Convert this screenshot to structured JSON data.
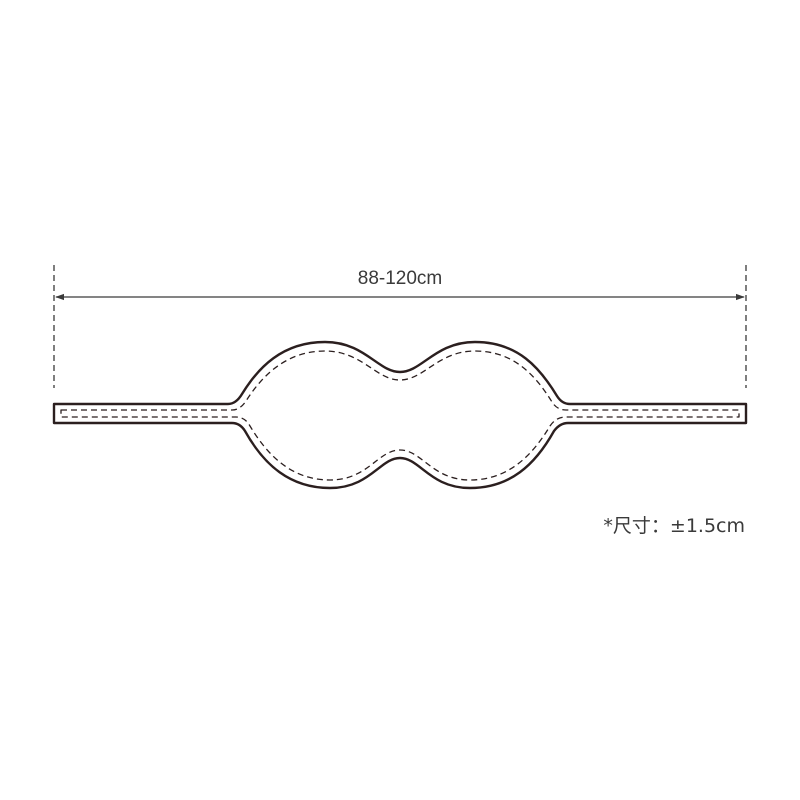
{
  "measurement": {
    "length_label": "88-120cm"
  },
  "note": {
    "tolerance_text": "*尺寸：±1.5cm"
  },
  "colors": {
    "outline": "#2b1f1f",
    "dimension_line": "#3a3a3a",
    "background": "#ffffff"
  }
}
